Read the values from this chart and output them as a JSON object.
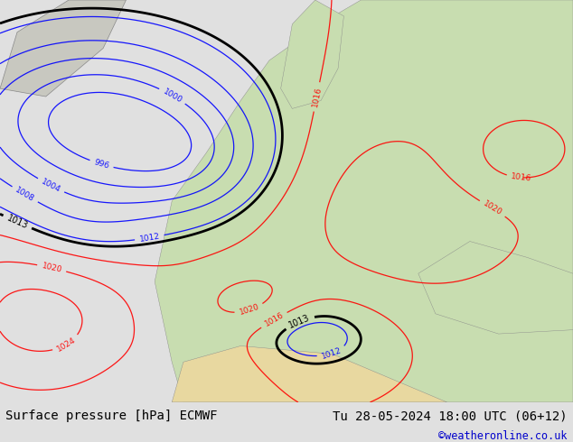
{
  "title_left": "Surface pressure [hPa] ECMWF",
  "title_right": "Tu 28-05-2024 18:00 UTC (06+12)",
  "credit": "©weatheronline.co.uk",
  "ocean_color": "#b8d4e8",
  "land_color": "#c8ddb0",
  "land_color2": "#d8e8c0",
  "grey_color": "#c8c8c0",
  "sand_color": "#e8d8a0",
  "footer_bg": "#e0e0e0",
  "figsize": [
    6.34,
    4.9
  ],
  "dpi": 100,
  "title_fontsize": 10,
  "credit_color": "#0000cc",
  "footer_color": "#000000"
}
